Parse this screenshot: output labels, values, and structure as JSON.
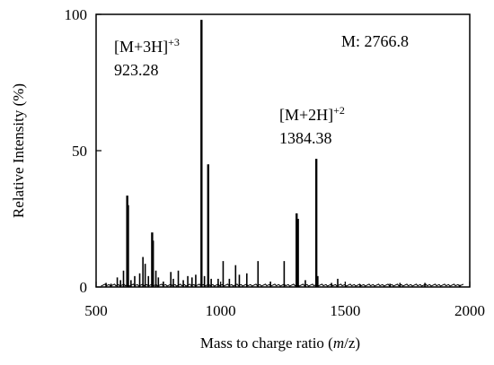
{
  "chart_data": {
    "type": "bar",
    "title": "",
    "xlabel_prefix": "Mass to charge ratio (",
    "xlabel_italic": "m",
    "xlabel_suffix": "/z)",
    "ylabel": "Relative Intensity (%)",
    "xlim": [
      500,
      2000
    ],
    "ylim": [
      0,
      100
    ],
    "x_ticks": [
      500,
      1000,
      1500,
      2000
    ],
    "y_ticks": [
      0,
      50,
      100
    ],
    "grid": false,
    "annotations": [
      {
        "id": "m3h",
        "label": "[M+3H]",
        "charge": "+3",
        "value": "923.28"
      },
      {
        "id": "m2h",
        "label": "[M+2H]",
        "charge": "+2",
        "value": "1384.38"
      },
      {
        "id": "mass",
        "label": "M: 2766.8"
      }
    ],
    "peaks": [
      {
        "mz": 540,
        "intensity": 1.5
      },
      {
        "mz": 560,
        "intensity": 1.2
      },
      {
        "mz": 585,
        "intensity": 3.5
      },
      {
        "mz": 598,
        "intensity": 2.5
      },
      {
        "mz": 610,
        "intensity": 6.0
      },
      {
        "mz": 625,
        "intensity": 33.5
      },
      {
        "mz": 628,
        "intensity": 30.0
      },
      {
        "mz": 640,
        "intensity": 2.5
      },
      {
        "mz": 655,
        "intensity": 4.0
      },
      {
        "mz": 675,
        "intensity": 5.0
      },
      {
        "mz": 688,
        "intensity": 11.0
      },
      {
        "mz": 697,
        "intensity": 8.5
      },
      {
        "mz": 710,
        "intensity": 4.0
      },
      {
        "mz": 725,
        "intensity": 20.0
      },
      {
        "mz": 728,
        "intensity": 17.0
      },
      {
        "mz": 740,
        "intensity": 6.0
      },
      {
        "mz": 750,
        "intensity": 3.5
      },
      {
        "mz": 770,
        "intensity": 2.0
      },
      {
        "mz": 800,
        "intensity": 5.5
      },
      {
        "mz": 810,
        "intensity": 3.0
      },
      {
        "mz": 830,
        "intensity": 6.0
      },
      {
        "mz": 850,
        "intensity": 2.5
      },
      {
        "mz": 868,
        "intensity": 4.0
      },
      {
        "mz": 885,
        "intensity": 3.5
      },
      {
        "mz": 900,
        "intensity": 4.5
      },
      {
        "mz": 923,
        "intensity": 98.0
      },
      {
        "mz": 935,
        "intensity": 4.0
      },
      {
        "mz": 950,
        "intensity": 45.0
      },
      {
        "mz": 962,
        "intensity": 3.0
      },
      {
        "mz": 990,
        "intensity": 3.0
      },
      {
        "mz": 1010,
        "intensity": 9.5
      },
      {
        "mz": 1035,
        "intensity": 3.0
      },
      {
        "mz": 1060,
        "intensity": 8.0
      },
      {
        "mz": 1075,
        "intensity": 4.5
      },
      {
        "mz": 1105,
        "intensity": 5.0
      },
      {
        "mz": 1150,
        "intensity": 9.5
      },
      {
        "mz": 1200,
        "intensity": 2.0
      },
      {
        "mz": 1255,
        "intensity": 9.5
      },
      {
        "mz": 1305,
        "intensity": 27.0
      },
      {
        "mz": 1310,
        "intensity": 25.0
      },
      {
        "mz": 1340,
        "intensity": 2.5
      },
      {
        "mz": 1384,
        "intensity": 47.0
      },
      {
        "mz": 1390,
        "intensity": 4.0
      },
      {
        "mz": 1445,
        "intensity": 1.5
      },
      {
        "mz": 1470,
        "intensity": 3.0
      },
      {
        "mz": 1560,
        "intensity": 1.0
      },
      {
        "mz": 1680,
        "intensity": 1.2
      },
      {
        "mz": 1720,
        "intensity": 1.5
      },
      {
        "mz": 1820,
        "intensity": 1.5
      },
      {
        "mz": 1960,
        "intensity": 0.8
      }
    ]
  }
}
